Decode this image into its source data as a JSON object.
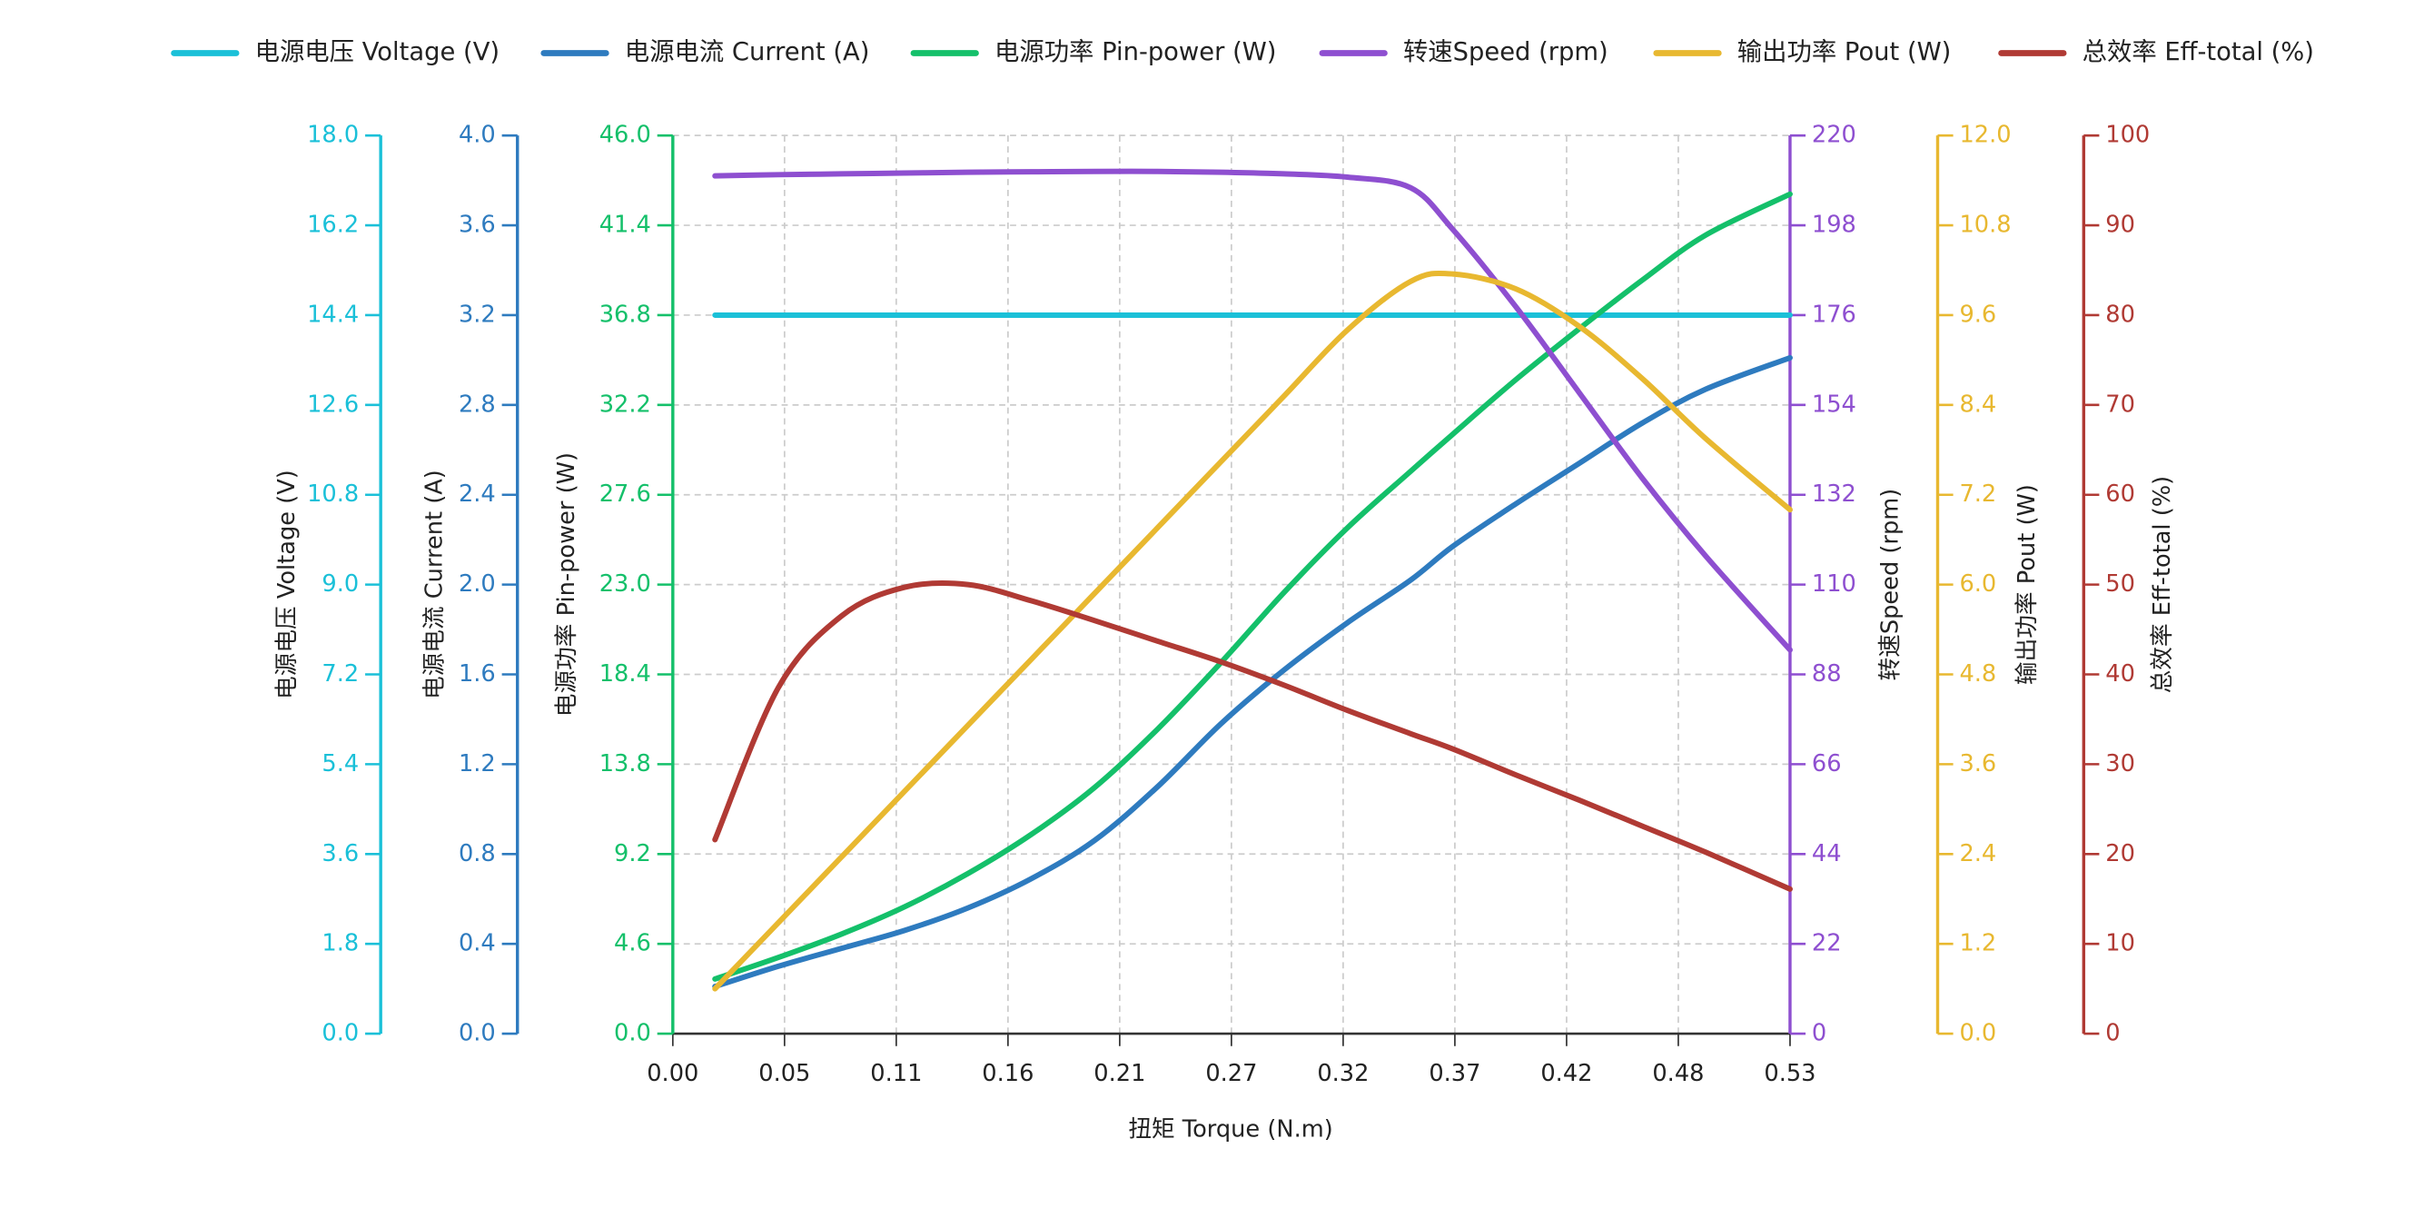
{
  "chart_data": {
    "type": "line",
    "xlabel": "扭矩 Torque (N.m)",
    "grid": true,
    "legend": "top",
    "x": [
      0.02,
      0.05,
      0.08,
      0.11,
      0.14,
      0.17,
      0.2,
      0.23,
      0.26,
      0.29,
      0.32,
      0.35,
      0.37,
      0.4,
      0.43,
      0.46,
      0.49,
      0.53
    ],
    "xlim": [
      0,
      0.53
    ],
    "xticks": [
      {
        "value": 0,
        "label": "0.00"
      },
      {
        "value": 0.053,
        "label": "0.05"
      },
      {
        "value": 0.106,
        "label": "0.11"
      },
      {
        "value": 0.159,
        "label": "0.16"
      },
      {
        "value": 0.212,
        "label": "0.21"
      },
      {
        "value": 0.265,
        "label": "0.27"
      },
      {
        "value": 0.318,
        "label": "0.32"
      },
      {
        "value": 0.371,
        "label": "0.37"
      },
      {
        "value": 0.424,
        "label": "0.42"
      },
      {
        "value": 0.477,
        "label": "0.48"
      },
      0.53
    ],
    "series": [
      {
        "name": "电源电压 Voltage (V)",
        "color": "#1ac0d8",
        "axis_side": "left",
        "axis_label": "电源电压 Voltage (V)",
        "ylim": [
          0,
          18
        ],
        "yticks": [
          {
            "value": 0,
            "label": "0.0"
          },
          1.8,
          3.6,
          5.4,
          7.2,
          {
            "value": 9,
            "label": "9.0"
          },
          10.8,
          12.6,
          14.4,
          16.2,
          {
            "value": 18,
            "label": "18.0"
          }
        ],
        "values": [
          14.4,
          14.4,
          14.4,
          14.4,
          14.4,
          14.4,
          14.4,
          14.4,
          14.4,
          14.4,
          14.4,
          14.4,
          14.4,
          14.4,
          14.4,
          14.4,
          14.4,
          14.4
        ]
      },
      {
        "name": "电源电流 Current (A)",
        "color": "#2e7bbf",
        "axis_side": "left",
        "axis_label": "电源电流 Current (A)",
        "ylim": [
          0,
          4
        ],
        "yticks": [
          {
            "value": 0,
            "label": "0.0"
          },
          0.4,
          0.8,
          1.2,
          1.6,
          {
            "value": 2,
            "label": "2.0"
          },
          2.4,
          2.8,
          3.2,
          3.6,
          {
            "value": 4,
            "label": "4.0"
          }
        ],
        "values": [
          0.21,
          0.3,
          0.38,
          0.46,
          0.56,
          0.69,
          0.86,
          1.1,
          1.38,
          1.62,
          1.83,
          2.02,
          2.17,
          2.36,
          2.54,
          2.72,
          2.87,
          3.01
        ]
      },
      {
        "name": "电源功率 Pin-power (W)",
        "color": "#14c06a",
        "axis_side": "left",
        "axis_label": "电源功率 Pin-power (W)",
        "ylim": [
          0,
          46
        ],
        "yticks": [
          {
            "value": 0,
            "label": "0.0"
          },
          4.6,
          9.2,
          13.8,
          18.4,
          {
            "value": 23,
            "label": "23.0"
          },
          27.6,
          32.2,
          36.8,
          41.4,
          {
            "value": 46,
            "label": "46.0"
          }
        ],
        "values": [
          2.8,
          3.9,
          5.1,
          6.5,
          8.2,
          10.2,
          12.6,
          15.6,
          19.0,
          22.6,
          25.9,
          28.8,
          30.7,
          33.5,
          36.1,
          38.6,
          40.9,
          43.0
        ]
      },
      {
        "name": "转速Speed (rpm)",
        "color": "#8e4fd0",
        "axis_side": "right",
        "axis_label": "转速Speed (rpm)",
        "ylim": [
          0,
          220
        ],
        "yticks": [
          0,
          22,
          44,
          66,
          88,
          110,
          132,
          154,
          176,
          198,
          220
        ],
        "values": [
          210.1,
          210.4,
          210.6,
          210.8,
          211,
          211.1,
          211.2,
          211.2,
          211,
          210.6,
          209.8,
          207.2,
          197,
          178,
          157,
          136,
          117,
          94
        ]
      },
      {
        "name": "输出功率 Pout (W)",
        "color": "#e8b830",
        "axis_side": "right",
        "axis_label": "输出功率 Pout (W)",
        "ylim": [
          0,
          12
        ],
        "yticks": [
          {
            "value": 0,
            "label": "0.0"
          },
          1.2,
          2.4,
          3.6,
          4.8,
          {
            "value": 6,
            "label": "6.0"
          },
          7.2,
          8.4,
          9.6,
          10.8,
          {
            "value": 12,
            "label": "12.0"
          }
        ],
        "values": [
          0.6,
          1.48,
          2.36,
          3.24,
          4.12,
          5.0,
          5.88,
          6.76,
          7.64,
          8.52,
          9.4,
          10.05,
          10.15,
          9.95,
          9.45,
          8.75,
          7.95,
          7.0
        ]
      },
      {
        "name": "总效率 Eff-total (%)",
        "color": "#b03a34",
        "axis_side": "right",
        "axis_label": "总效率 Eff-total (%)",
        "ylim": [
          0,
          100
        ],
        "yticks": [
          0,
          10,
          20,
          30,
          40,
          50,
          60,
          70,
          80,
          90,
          100
        ],
        "values": [
          21.6,
          38.5,
          46.5,
          49.7,
          50.0,
          48.2,
          46.0,
          43.7,
          41.4,
          38.8,
          36.0,
          33.4,
          31.7,
          28.8,
          26.0,
          23.1,
          20.2,
          16.1
        ]
      }
    ]
  }
}
